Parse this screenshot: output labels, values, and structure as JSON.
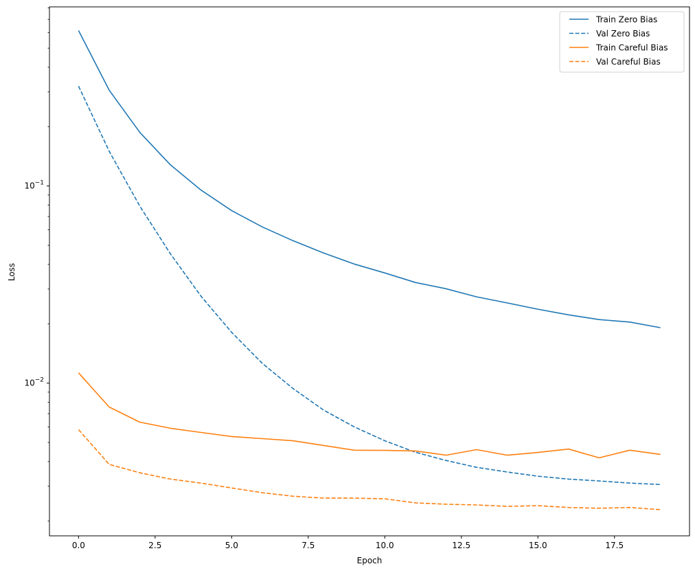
{
  "chart_data": {
    "type": "line",
    "xlabel": "Epoch",
    "ylabel": "Loss",
    "yscale": "log",
    "xlim": [
      -0.95,
      19.95
    ],
    "ylim": [
      0.00168,
      0.81
    ],
    "grid": false,
    "legend_position": "top-right",
    "x_ticks": [
      "0.0",
      "2.5",
      "5.0",
      "7.5",
      "10.0",
      "12.5",
      "15.0",
      "17.5"
    ],
    "x_tick_values": [
      0,
      2.5,
      5,
      7.5,
      10,
      12.5,
      15,
      17.5
    ],
    "y_ticks": [
      {
        "value": 0.1,
        "base": "10",
        "exp": "−1"
      },
      {
        "value": 0.01,
        "base": "10",
        "exp": "−2"
      }
    ],
    "x": [
      0,
      1,
      2,
      3,
      4,
      5,
      6,
      7,
      8,
      9,
      10,
      11,
      12,
      13,
      14,
      15,
      16,
      17,
      18,
      19
    ],
    "series": [
      {
        "name": "Train Zero Bias",
        "color": "#1f77b4",
        "dashed": false,
        "values": [
          0.614,
          0.306,
          0.187,
          0.128,
          0.0953,
          0.075,
          0.062,
          0.0528,
          0.0457,
          0.0402,
          0.0362,
          0.0324,
          0.0301,
          0.0274,
          0.0255,
          0.0237,
          0.0222,
          0.021,
          0.0204,
          0.0191
        ]
      },
      {
        "name": "Val Zero Bias",
        "color": "#1f77b4",
        "dashed": true,
        "values": [
          0.321,
          0.15,
          0.079,
          0.0453,
          0.0276,
          0.0181,
          0.0126,
          0.0094,
          0.0073,
          0.006,
          0.0051,
          0.00446,
          0.00405,
          0.00374,
          0.00354,
          0.00337,
          0.00326,
          0.00319,
          0.00311,
          0.00306
        ]
      },
      {
        "name": "Train Careful Bias",
        "color": "#ff7f0e",
        "dashed": false,
        "values": [
          0.01128,
          0.00756,
          0.00634,
          0.0059,
          0.00562,
          0.00536,
          0.00523,
          0.0051,
          0.00483,
          0.00457,
          0.00456,
          0.00453,
          0.00431,
          0.0046,
          0.00431,
          0.00445,
          0.00463,
          0.00418,
          0.00457,
          0.00435
        ]
      },
      {
        "name": "Val Careful Bias",
        "color": "#ff7f0e",
        "dashed": true,
        "values": [
          0.00581,
          0.00387,
          0.00351,
          0.00326,
          0.00311,
          0.00294,
          0.00278,
          0.00267,
          0.00261,
          0.00261,
          0.00259,
          0.00247,
          0.00243,
          0.00241,
          0.00237,
          0.00239,
          0.00234,
          0.00232,
          0.00234,
          0.00228
        ]
      }
    ]
  }
}
